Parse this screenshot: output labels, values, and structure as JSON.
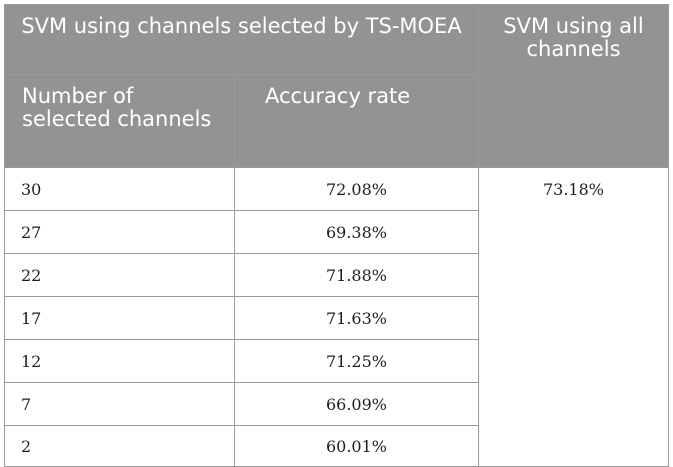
{
  "header": {
    "group_title": "SVM using channels selected by TS-MOEA",
    "all_title": "SVM using all channels",
    "col_num": "Number of selected channels",
    "col_acc": "Accuracy rate"
  },
  "rows": [
    {
      "n": "30",
      "acc": "72.08%"
    },
    {
      "n": "27",
      "acc": "69.38%"
    },
    {
      "n": "22",
      "acc": "71.88%"
    },
    {
      "n": "17",
      "acc": "71.63%"
    },
    {
      "n": "12",
      "acc": "71.25%"
    },
    {
      "n": "7",
      "acc": "66.09%"
    },
    {
      "n": "2",
      "acc": "60.01%"
    }
  ],
  "all_channels_accuracy": "73.18%"
}
